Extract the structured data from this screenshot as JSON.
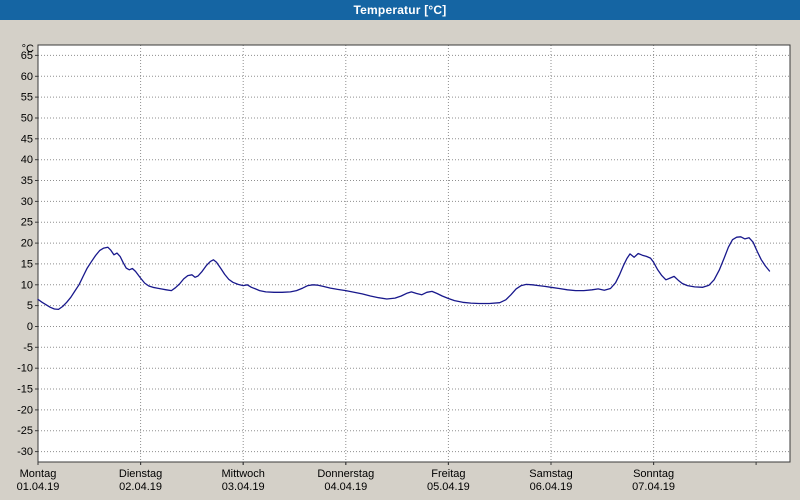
{
  "window_title": "Temperatur [°C]",
  "colors": {
    "page_bg": "#d4d0c8",
    "titlebar_bg": "#1565a3",
    "titlebar_text": "#ffffff",
    "plot_bg": "#ffffff",
    "grid": "#8f8f8f",
    "border": "#3a3a3a",
    "line": "#18188c",
    "text": "#000000"
  },
  "chart_data": {
    "type": "line",
    "title": "Temperatur [°C]",
    "xlabel": "",
    "ylabel": "°C",
    "ylim": [
      -32.5,
      67.5
    ],
    "y_tick_step": 5,
    "y_ticks": [
      65,
      60,
      55,
      50,
      45,
      40,
      35,
      30,
      25,
      20,
      15,
      10,
      5,
      0,
      -5,
      -10,
      -15,
      -20,
      -25,
      -30
    ],
    "x_total_days": 7.33,
    "grid": "dashed",
    "legend": "none",
    "x_days": [
      {
        "name": "Montag",
        "date": "01.04.19"
      },
      {
        "name": "Dienstag",
        "date": "02.04.19"
      },
      {
        "name": "Mittwoch",
        "date": "03.04.19"
      },
      {
        "name": "Donnerstag",
        "date": "04.04.19"
      },
      {
        "name": "Freitag",
        "date": "05.04.19"
      },
      {
        "name": "Samstag",
        "date": "06.04.19"
      },
      {
        "name": "Sonntag",
        "date": "07.04.19"
      }
    ],
    "series": [
      {
        "name": "Temperatur",
        "color": "#18188c",
        "points": [
          [
            0.0,
            6.5
          ],
          [
            0.04,
            5.8
          ],
          [
            0.08,
            5.2
          ],
          [
            0.12,
            4.6
          ],
          [
            0.16,
            4.2
          ],
          [
            0.2,
            4.1
          ],
          [
            0.24,
            4.8
          ],
          [
            0.28,
            5.8
          ],
          [
            0.32,
            7.0
          ],
          [
            0.36,
            8.5
          ],
          [
            0.4,
            10.0
          ],
          [
            0.44,
            12.0
          ],
          [
            0.48,
            14.0
          ],
          [
            0.52,
            15.5
          ],
          [
            0.56,
            17.0
          ],
          [
            0.6,
            18.2
          ],
          [
            0.64,
            18.8
          ],
          [
            0.68,
            19.0
          ],
          [
            0.71,
            18.3
          ],
          [
            0.74,
            17.2
          ],
          [
            0.77,
            17.6
          ],
          [
            0.8,
            16.8
          ],
          [
            0.83,
            15.3
          ],
          [
            0.86,
            14.0
          ],
          [
            0.89,
            13.6
          ],
          [
            0.92,
            13.9
          ],
          [
            0.95,
            13.2
          ],
          [
            1.0,
            11.6
          ],
          [
            1.04,
            10.4
          ],
          [
            1.08,
            9.7
          ],
          [
            1.12,
            9.4
          ],
          [
            1.16,
            9.2
          ],
          [
            1.2,
            9.0
          ],
          [
            1.25,
            8.8
          ],
          [
            1.3,
            8.6
          ],
          [
            1.34,
            9.3
          ],
          [
            1.38,
            10.2
          ],
          [
            1.42,
            11.4
          ],
          [
            1.46,
            12.2
          ],
          [
            1.5,
            12.4
          ],
          [
            1.53,
            11.8
          ],
          [
            1.56,
            12.1
          ],
          [
            1.6,
            13.2
          ],
          [
            1.64,
            14.6
          ],
          [
            1.68,
            15.6
          ],
          [
            1.71,
            16.0
          ],
          [
            1.74,
            15.4
          ],
          [
            1.78,
            14.0
          ],
          [
            1.82,
            12.5
          ],
          [
            1.86,
            11.3
          ],
          [
            1.9,
            10.6
          ],
          [
            1.95,
            10.1
          ],
          [
            2.0,
            9.8
          ],
          [
            2.04,
            10.0
          ],
          [
            2.08,
            9.4
          ],
          [
            2.12,
            9.0
          ],
          [
            2.16,
            8.6
          ],
          [
            2.22,
            8.3
          ],
          [
            2.3,
            8.2
          ],
          [
            2.38,
            8.2
          ],
          [
            2.46,
            8.3
          ],
          [
            2.52,
            8.6
          ],
          [
            2.58,
            9.2
          ],
          [
            2.63,
            9.8
          ],
          [
            2.68,
            10.0
          ],
          [
            2.73,
            9.9
          ],
          [
            2.78,
            9.6
          ],
          [
            2.85,
            9.2
          ],
          [
            2.92,
            8.9
          ],
          [
            3.0,
            8.6
          ],
          [
            3.08,
            8.2
          ],
          [
            3.16,
            7.8
          ],
          [
            3.24,
            7.3
          ],
          [
            3.32,
            6.9
          ],
          [
            3.4,
            6.6
          ],
          [
            3.48,
            6.8
          ],
          [
            3.54,
            7.3
          ],
          [
            3.6,
            8.0
          ],
          [
            3.64,
            8.3
          ],
          [
            3.69,
            7.9
          ],
          [
            3.74,
            7.6
          ],
          [
            3.79,
            8.2
          ],
          [
            3.84,
            8.4
          ],
          [
            3.89,
            7.9
          ],
          [
            3.94,
            7.3
          ],
          [
            4.0,
            6.7
          ],
          [
            4.06,
            6.2
          ],
          [
            4.14,
            5.8
          ],
          [
            4.22,
            5.6
          ],
          [
            4.3,
            5.5
          ],
          [
            4.4,
            5.5
          ],
          [
            4.5,
            5.7
          ],
          [
            4.56,
            6.4
          ],
          [
            4.61,
            7.6
          ],
          [
            4.66,
            9.0
          ],
          [
            4.71,
            9.8
          ],
          [
            4.76,
            10.1
          ],
          [
            4.82,
            10.0
          ],
          [
            4.88,
            9.8
          ],
          [
            4.94,
            9.6
          ],
          [
            5.0,
            9.4
          ],
          [
            5.08,
            9.1
          ],
          [
            5.16,
            8.8
          ],
          [
            5.24,
            8.6
          ],
          [
            5.32,
            8.6
          ],
          [
            5.4,
            8.8
          ],
          [
            5.46,
            9.0
          ],
          [
            5.52,
            8.7
          ],
          [
            5.58,
            9.1
          ],
          [
            5.63,
            10.5
          ],
          [
            5.67,
            12.5
          ],
          [
            5.71,
            14.8
          ],
          [
            5.74,
            16.3
          ],
          [
            5.77,
            17.4
          ],
          [
            5.81,
            16.6
          ],
          [
            5.85,
            17.5
          ],
          [
            5.89,
            17.1
          ],
          [
            5.93,
            16.8
          ],
          [
            5.97,
            16.4
          ],
          [
            6.0,
            15.4
          ],
          [
            6.04,
            13.6
          ],
          [
            6.08,
            12.2
          ],
          [
            6.12,
            11.2
          ],
          [
            6.16,
            11.6
          ],
          [
            6.2,
            12.0
          ],
          [
            6.24,
            11.1
          ],
          [
            6.28,
            10.3
          ],
          [
            6.33,
            9.8
          ],
          [
            6.4,
            9.5
          ],
          [
            6.48,
            9.4
          ],
          [
            6.54,
            9.9
          ],
          [
            6.59,
            11.2
          ],
          [
            6.64,
            13.5
          ],
          [
            6.69,
            16.5
          ],
          [
            6.73,
            19.0
          ],
          [
            6.77,
            20.8
          ],
          [
            6.81,
            21.4
          ],
          [
            6.85,
            21.5
          ],
          [
            6.89,
            21.0
          ],
          [
            6.93,
            21.3
          ],
          [
            6.97,
            20.2
          ],
          [
            7.01,
            18.0
          ],
          [
            7.05,
            16.0
          ],
          [
            7.09,
            14.5
          ],
          [
            7.13,
            13.3
          ]
        ]
      }
    ]
  }
}
